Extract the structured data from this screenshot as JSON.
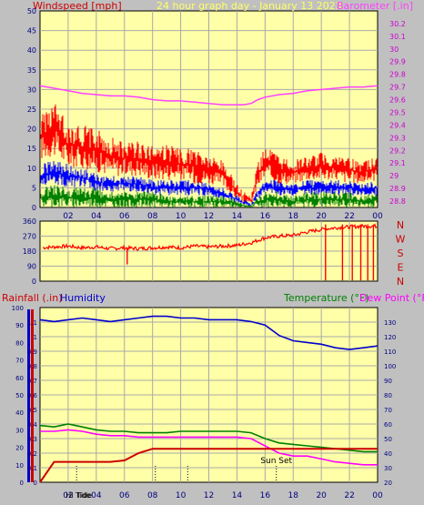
{
  "header": {
    "windspeed_label": "Windspeed [mph]",
    "title": "24 hour graph day - January 13 2023",
    "barometer_label": "Barometer [.in]"
  },
  "time_axis": {
    "ticks": [
      "02",
      "04",
      "06",
      "08",
      "10",
      "12",
      "14",
      "16",
      "18",
      "20",
      "22",
      "00"
    ]
  },
  "colors": {
    "background": "#c0c0c0",
    "plot_bg": "#ffffa8",
    "grid": "#a9a9a9",
    "gust": "#ff0000",
    "average": "#0000ff",
    "calm": "#008000",
    "barometer": "#ff40ff",
    "direction": "#ff0000",
    "humidity": "#0000cc",
    "rain": "#cc0000",
    "temperature": "#008000",
    "dewpoint": "#ff00ff"
  },
  "chart_data": [
    {
      "type": "line",
      "name": "wind-barometer",
      "title": "24 hour graph day - January 13 2023",
      "ylabel": "Windspeed [mph]",
      "y2label": "Barometer [.in]",
      "ylim": [
        0,
        50
      ],
      "y2lim": [
        28.75,
        30.3
      ],
      "yticks": [
        "0",
        "5",
        "10",
        "15",
        "20",
        "25",
        "30",
        "35",
        "40",
        "45",
        "50"
      ],
      "y2ticks": [
        "28.8",
        "28.9",
        "29",
        "29.1",
        "29.2",
        "29.3",
        "29.4",
        "29.5",
        "29.6",
        "29.7",
        "29.8",
        "29.9",
        "30",
        "30.1",
        "30.2"
      ],
      "x_hours": [
        0,
        1,
        2,
        3,
        4,
        5,
        6,
        7,
        8,
        9,
        10,
        11,
        12,
        13,
        14,
        14.5,
        15,
        15.5,
        16,
        17,
        18,
        19,
        20,
        21,
        22,
        23,
        24
      ],
      "gust_max": [
        24,
        27,
        22,
        21,
        20,
        18,
        17,
        17,
        16,
        16,
        15,
        15,
        13,
        12,
        6,
        4,
        3,
        12,
        16,
        13,
        12,
        13,
        14,
        13,
        13,
        12,
        13
      ],
      "gust_min": [
        12,
        13,
        10,
        10,
        9,
        8,
        8,
        8,
        7,
        7,
        7,
        6,
        6,
        5,
        2,
        1,
        0.5,
        5,
        7,
        6,
        6,
        7,
        7,
        7,
        6,
        6,
        7
      ],
      "avg_max": [
        11,
        12,
        11,
        10,
        9,
        8,
        8,
        8,
        7,
        7,
        7,
        7,
        6,
        5,
        3,
        2,
        1,
        5,
        7,
        7,
        6,
        7,
        7,
        7,
        7,
        6,
        7
      ],
      "avg_min": [
        5,
        6,
        5,
        5,
        4,
        4,
        4,
        4,
        3,
        3,
        3,
        3,
        3,
        2,
        1,
        0.5,
        0.2,
        2,
        4,
        3,
        3,
        3,
        3,
        3,
        3,
        3,
        3
      ],
      "calm_max": [
        5,
        6,
        5,
        5,
        5,
        4,
        4,
        4,
        4,
        3,
        3,
        3,
        3,
        3,
        2,
        1,
        0.5,
        3,
        4,
        4,
        3,
        4,
        4,
        4,
        4,
        3,
        4
      ],
      "calm_min": [
        0,
        0,
        0,
        0,
        0,
        0,
        0,
        0,
        0,
        0,
        0,
        0,
        0,
        0,
        0,
        0,
        0,
        0,
        0,
        0,
        0,
        0,
        0,
        0,
        0,
        0,
        0
      ],
      "barometer": [
        29.71,
        29.69,
        29.67,
        29.65,
        29.64,
        29.63,
        29.63,
        29.62,
        29.6,
        29.59,
        29.59,
        29.58,
        29.57,
        29.56,
        29.56,
        29.56,
        29.57,
        29.6,
        29.62,
        29.64,
        29.65,
        29.67,
        29.68,
        29.69,
        29.7,
        29.7,
        29.71
      ]
    },
    {
      "type": "scatter",
      "name": "wind-direction",
      "ylim": [
        0,
        360
      ],
      "yticks": [
        "0",
        "90",
        "180",
        "270",
        "360"
      ],
      "compass": [
        "N",
        "W",
        "S",
        "E",
        "N"
      ],
      "x_hours": [
        0,
        1,
        2,
        3,
        4,
        5,
        6,
        7,
        8,
        9,
        10,
        11,
        12,
        13,
        14,
        15,
        16,
        17,
        18,
        19,
        20,
        21,
        22,
        23,
        24
      ],
      "direction": [
        200,
        205,
        210,
        200,
        205,
        195,
        200,
        195,
        200,
        205,
        200,
        210,
        205,
        210,
        215,
        230,
        260,
        270,
        275,
        295,
        310,
        320,
        325,
        330,
        330
      ]
    },
    {
      "type": "line",
      "name": "rain-humidity-temperature",
      "ylabel": "Rainfall (.in)",
      "y2label": "Humidity",
      "y3label": "Temperature (°F)",
      "y4label": "Dew Point (°F)",
      "rain_ylim": [
        0,
        1.2
      ],
      "rain_ticks": [
        "0",
        "0.1",
        "0.2",
        "0.3",
        "0.4",
        "0.5",
        "0.6",
        "0.7",
        "0.8",
        "0.9",
        "1",
        "1.1"
      ],
      "humidity_ylim": [
        0,
        100
      ],
      "humidity_ticks": [
        "0",
        "10",
        "20",
        "30",
        "40",
        "50",
        "60",
        "70",
        "80",
        "90",
        "100"
      ],
      "temp_ylim": [
        20,
        140
      ],
      "temp_ticks": [
        "20",
        "30",
        "40",
        "50",
        "60",
        "70",
        "80",
        "90",
        "100",
        "110",
        "120",
        "130"
      ],
      "sun_labels": [
        "Hi Tide",
        "Tide",
        "Sun Set"
      ],
      "x_hours": [
        0,
        1,
        2,
        3,
        4,
        5,
        6,
        7,
        8,
        9,
        10,
        11,
        12,
        13,
        14,
        15,
        16,
        17,
        18,
        19,
        20,
        21,
        22,
        23,
        24
      ],
      "humidity": [
        93,
        92,
        93,
        94,
        93,
        92,
        93,
        94,
        95,
        95,
        94,
        94,
        93,
        93,
        93,
        92,
        90,
        84,
        81,
        80,
        79,
        77,
        76,
        77,
        78
      ],
      "temperature": [
        59,
        58,
        60,
        58,
        56,
        55,
        55,
        54,
        54,
        54,
        55,
        55,
        55,
        55,
        55,
        54,
        50,
        47,
        46,
        45,
        44,
        43,
        42,
        41,
        41
      ],
      "dewpoint": [
        55,
        55,
        56,
        55,
        53,
        52,
        52,
        51,
        51,
        51,
        51,
        51,
        51,
        51,
        51,
        50,
        45,
        40,
        38,
        38,
        36,
        34,
        33,
        32,
        32
      ],
      "rain": [
        0,
        0.14,
        0.14,
        0.14,
        0.14,
        0.14,
        0.15,
        0.2,
        0.23,
        0.23,
        0.23,
        0.23,
        0.23,
        0.23,
        0.23,
        0.23,
        0.23,
        0.23,
        0.23,
        0.23,
        0.23,
        0.23,
        0.23,
        0.23,
        0.23
      ]
    }
  ]
}
